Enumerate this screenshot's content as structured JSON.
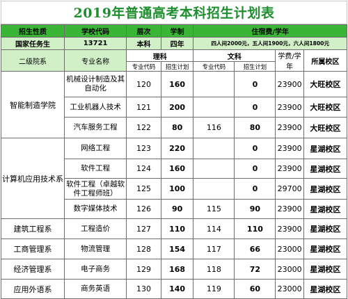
{
  "title": "2019年普通高考本科招生计划表",
  "header": {
    "c1": "招生性质",
    "c2": "学校代码",
    "c3": "层次",
    "c4": "学制",
    "c5": "住宿费/学年"
  },
  "info": {
    "c1": "国家任务生",
    "c2": "13721",
    "c3": "本科",
    "c4": "四年",
    "c5": "四人间2000元，五人间1900元，六人间1800元"
  },
  "sub": {
    "dept": "二级院系",
    "major": "专业名称",
    "science": "理科",
    "arts": "文科",
    "code": "专业代码",
    "plan": "招生计划",
    "fee": "学费/学年",
    "campus": "所属校区"
  },
  "rows": [
    {
      "dept": "智能制造学院",
      "major": "机械设计制造及其自动化",
      "sci_code": "120",
      "sci_plan": "160",
      "arts_code": "",
      "arts_plan": "0",
      "fee": "23900",
      "campus": "大旺校区"
    },
    {
      "dept": "",
      "major": "工业机器人技术",
      "sci_code": "121",
      "sci_plan": "200",
      "arts_code": "",
      "arts_plan": "0",
      "fee": "23900",
      "campus": "大旺校区"
    },
    {
      "dept": "",
      "major": "汽车服务工程",
      "sci_code": "122",
      "sci_plan": "80",
      "arts_code": "116",
      "arts_plan": "80",
      "fee": "23900",
      "campus": "大旺校区"
    },
    {
      "dept": "计算机应用技术系",
      "major": "网络工程",
      "sci_code": "123",
      "sci_plan": "220",
      "arts_code": "",
      "arts_plan": "0",
      "fee": "23900",
      "campus": "星湖校区"
    },
    {
      "dept": "",
      "major": "软件工程",
      "sci_code": "124",
      "sci_plan": "160",
      "arts_code": "",
      "arts_plan": "0",
      "fee": "23900",
      "campus": "星湖校区"
    },
    {
      "dept": "",
      "major": "软件工程（卓越软件工程师班）",
      "sci_code": "125",
      "sci_plan": "100",
      "arts_code": "",
      "arts_plan": "0",
      "fee": "29700",
      "campus": "星湖校区"
    },
    {
      "dept": "",
      "major": "数字媒体技术",
      "sci_code": "126",
      "sci_plan": "90",
      "arts_code": "115",
      "arts_plan": "90",
      "fee": "23900",
      "campus": "星湖校区"
    },
    {
      "dept": "建筑工程系",
      "major": "工程造价",
      "sci_code": "127",
      "sci_plan": "110",
      "arts_code": "114",
      "arts_plan": "110",
      "fee": "23900",
      "campus": "星湖校区"
    },
    {
      "dept": "工商管理系",
      "major": "物流管理",
      "sci_code": "128",
      "sci_plan": "154",
      "arts_code": "117",
      "arts_plan": "66",
      "fee": "23000",
      "campus": "星湖校区"
    },
    {
      "dept": "经济管理系",
      "major": "电子商务",
      "sci_code": "129",
      "sci_plan": "168",
      "arts_code": "118",
      "arts_plan": "72",
      "fee": "23000",
      "campus": "星湖校区"
    },
    {
      "dept": "应用外语系",
      "major": "商务英语",
      "sci_code": "130",
      "sci_plan": "140",
      "arts_code": "119",
      "arts_plan": "60",
      "fee": "23000",
      "campus": "星湖校区"
    }
  ],
  "colors": {
    "title_text": "#1f8e2e",
    "header_bg": "#3bb536",
    "info_bg": "#d2f0c8",
    "grid": "#6d6d6d"
  }
}
